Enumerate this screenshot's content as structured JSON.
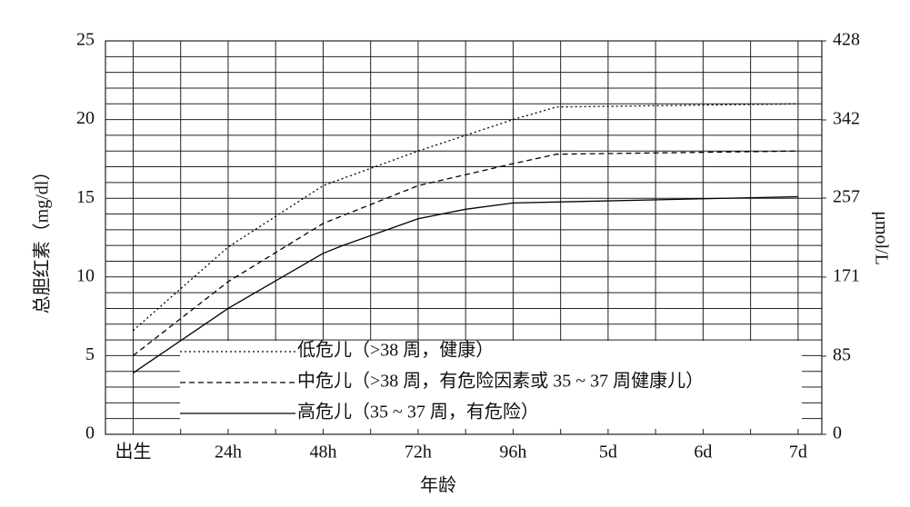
{
  "chart_data": {
    "type": "line",
    "xlabel": "年龄",
    "ylabel": "总胆红素（mg/dl）",
    "y2label": "μmol/L",
    "xlim": [
      -7,
      174
    ],
    "xticks": [
      {
        "value": 0,
        "label": "出生"
      },
      {
        "value": 24,
        "label": "24h"
      },
      {
        "value": 48,
        "label": "48h"
      },
      {
        "value": 72,
        "label": "72h"
      },
      {
        "value": 96,
        "label": "96h"
      },
      {
        "value": 120,
        "label": "5d"
      },
      {
        "value": 144,
        "label": "6d"
      },
      {
        "value": 168,
        "label": "7d"
      }
    ],
    "x_minor_ticks": [
      12,
      36,
      60,
      84,
      108,
      132,
      156
    ],
    "ylim": [
      0,
      25
    ],
    "yticks": [
      0,
      5,
      10,
      15,
      20,
      25
    ],
    "y_minor_ticks": [
      1,
      2,
      3,
      4,
      6,
      7,
      8,
      9,
      11,
      12,
      13,
      14,
      16,
      17,
      18,
      19,
      21,
      22,
      23,
      24
    ],
    "y2lim": [
      0,
      428
    ],
    "y2ticks": [
      0,
      85,
      171,
      257,
      342,
      428
    ],
    "grid": true,
    "series": [
      {
        "name": "低危儿（>38 周，健康）",
        "color": "#000000",
        "line_style": "dotted",
        "x": [
          0,
          24,
          48,
          72,
          96,
          107,
          168
        ],
        "values": [
          6.6,
          11.9,
          15.8,
          18.0,
          20.0,
          20.8,
          21.0
        ]
      },
      {
        "name": "中危儿（>38 周，有危险因素或 35 ~ 37 周健康儿）",
        "color": "#000000",
        "line_style": "dashed",
        "x": [
          0,
          24,
          48,
          72,
          96,
          107,
          168
        ],
        "values": [
          5.0,
          9.7,
          13.4,
          15.8,
          17.2,
          17.8,
          18.0
        ]
      },
      {
        "name": "高危儿（35 ~ 37 周，有危险）",
        "color": "#000000",
        "line_style": "solid",
        "x": [
          0,
          24,
          48,
          53,
          72,
          84,
          96,
          168
        ],
        "values": [
          3.9,
          8.0,
          11.5,
          12.0,
          13.7,
          14.3,
          14.7,
          15.1
        ]
      }
    ]
  }
}
